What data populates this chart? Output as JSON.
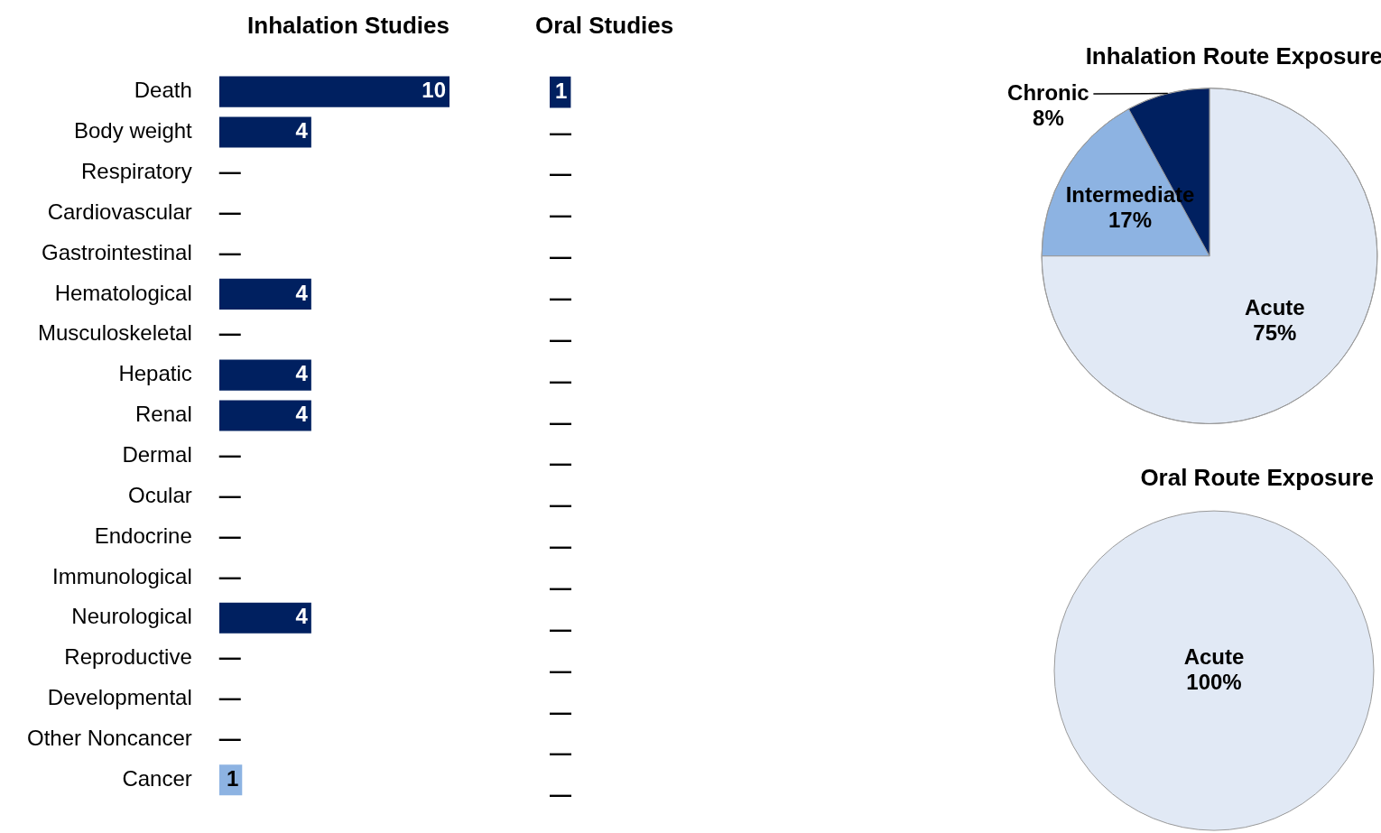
{
  "chart_data": [
    {
      "type": "bar",
      "orientation": "horizontal",
      "title": "Inhalation Studies",
      "categories": [
        "Death",
        "Body weight",
        "Respiratory",
        "Cardiovascular",
        "Gastrointestinal",
        "Hematological",
        "Musculoskeletal",
        "Hepatic",
        "Renal",
        "Dermal",
        "Ocular",
        "Endocrine",
        "Immunological",
        "Neurological",
        "Reproductive",
        "Developmental",
        "Other Noncancer",
        "Cancer"
      ],
      "values": [
        10,
        4,
        0,
        0,
        0,
        4,
        0,
        4,
        4,
        0,
        0,
        0,
        0,
        4,
        0,
        0,
        0,
        1
      ],
      "colors": [
        "#002060",
        "#002060",
        "#002060",
        "#002060",
        "#002060",
        "#002060",
        "#002060",
        "#002060",
        "#002060",
        "#002060",
        "#002060",
        "#002060",
        "#002060",
        "#002060",
        "#002060",
        "#002060",
        "#002060",
        "#8db3e2"
      ],
      "value_labels": [
        "10",
        "4",
        "—",
        "—",
        "—",
        "4",
        "—",
        "4",
        "4",
        "—",
        "—",
        "—",
        "—",
        "4",
        "—",
        "—",
        "—",
        "1"
      ],
      "legend": false
    },
    {
      "type": "bar",
      "orientation": "horizontal",
      "title": "Oral Studies",
      "categories": [
        null,
        null,
        null,
        null,
        null,
        null,
        null,
        null,
        null,
        null,
        null,
        null,
        null,
        null,
        null,
        null,
        null,
        null
      ],
      "values": [
        1,
        0,
        0,
        0,
        0,
        0,
        0,
        0,
        0,
        0,
        0,
        0,
        0,
        0,
        0,
        0,
        0,
        0
      ],
      "colors": [
        "#002060",
        "#002060",
        "#002060",
        "#002060",
        "#002060",
        "#002060",
        "#002060",
        "#002060",
        "#002060",
        "#002060",
        "#002060",
        "#002060",
        "#002060",
        "#002060",
        "#002060",
        "#002060",
        "#002060",
        "#002060"
      ],
      "value_labels": [
        "1",
        "—",
        "—",
        "—",
        "—",
        "—",
        "—",
        "—",
        "—",
        "—",
        "—",
        "—",
        "—",
        "—",
        "—",
        "—",
        "—",
        "—"
      ],
      "legend": false
    },
    {
      "type": "pie",
      "title": "Inhalation Route Exposure",
      "categories": [
        "Acute",
        "Intermediate",
        "Chronic"
      ],
      "values": [
        75,
        17,
        8
      ],
      "colors": [
        "#e1e9f5",
        "#8db3e2",
        "#002060"
      ],
      "value_labels": [
        "75%",
        "17%",
        "8%"
      ],
      "legend": false
    },
    {
      "type": "pie",
      "title": "Oral Route Exposure",
      "categories": [
        "Acute"
      ],
      "values": [
        100
      ],
      "colors": [
        "#e1e9f5"
      ],
      "value_labels": [
        "100%"
      ],
      "legend": false
    }
  ]
}
